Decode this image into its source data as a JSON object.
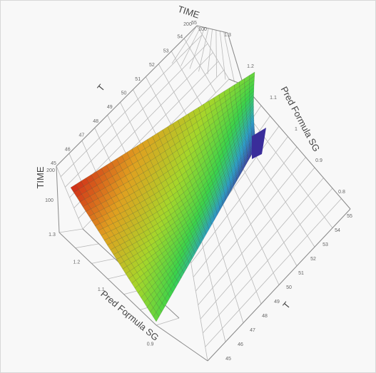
{
  "chart_data": {
    "type": "surface3d",
    "title": "",
    "axes": {
      "time": {
        "label": "TIME",
        "ticks": [
          "100",
          "200"
        ],
        "range": [
          50,
          200
        ]
      },
      "t": {
        "label": "T",
        "ticks": [
          "45",
          "46",
          "47",
          "48",
          "49",
          "50",
          "51",
          "52",
          "53",
          "54",
          "55"
        ],
        "range": [
          45,
          55
        ]
      },
      "pred_sg": {
        "label": "Pred Formula SG",
        "ticks": [
          "0.8",
          "0.9",
          "1",
          "1.1",
          "1.2",
          "1.3"
        ],
        "range": [
          0.8,
          1.3
        ]
      }
    },
    "surface": {
      "description_points": [
        {
          "TIME": 200,
          "T": 45,
          "SG": 1.22
        },
        {
          "TIME": 200,
          "T": 55,
          "SG": 1.12
        },
        {
          "TIME": 50,
          "T": 55,
          "SG": 0.98
        },
        {
          "TIME": 50,
          "T": 45,
          "SG": 1.2
        }
      ]
    },
    "colormap": [
      "#3b3fb0",
      "#2aa3d8",
      "#3ad34a",
      "#a6d62a",
      "#e0a020",
      "#d02818"
    ],
    "grid": true
  }
}
